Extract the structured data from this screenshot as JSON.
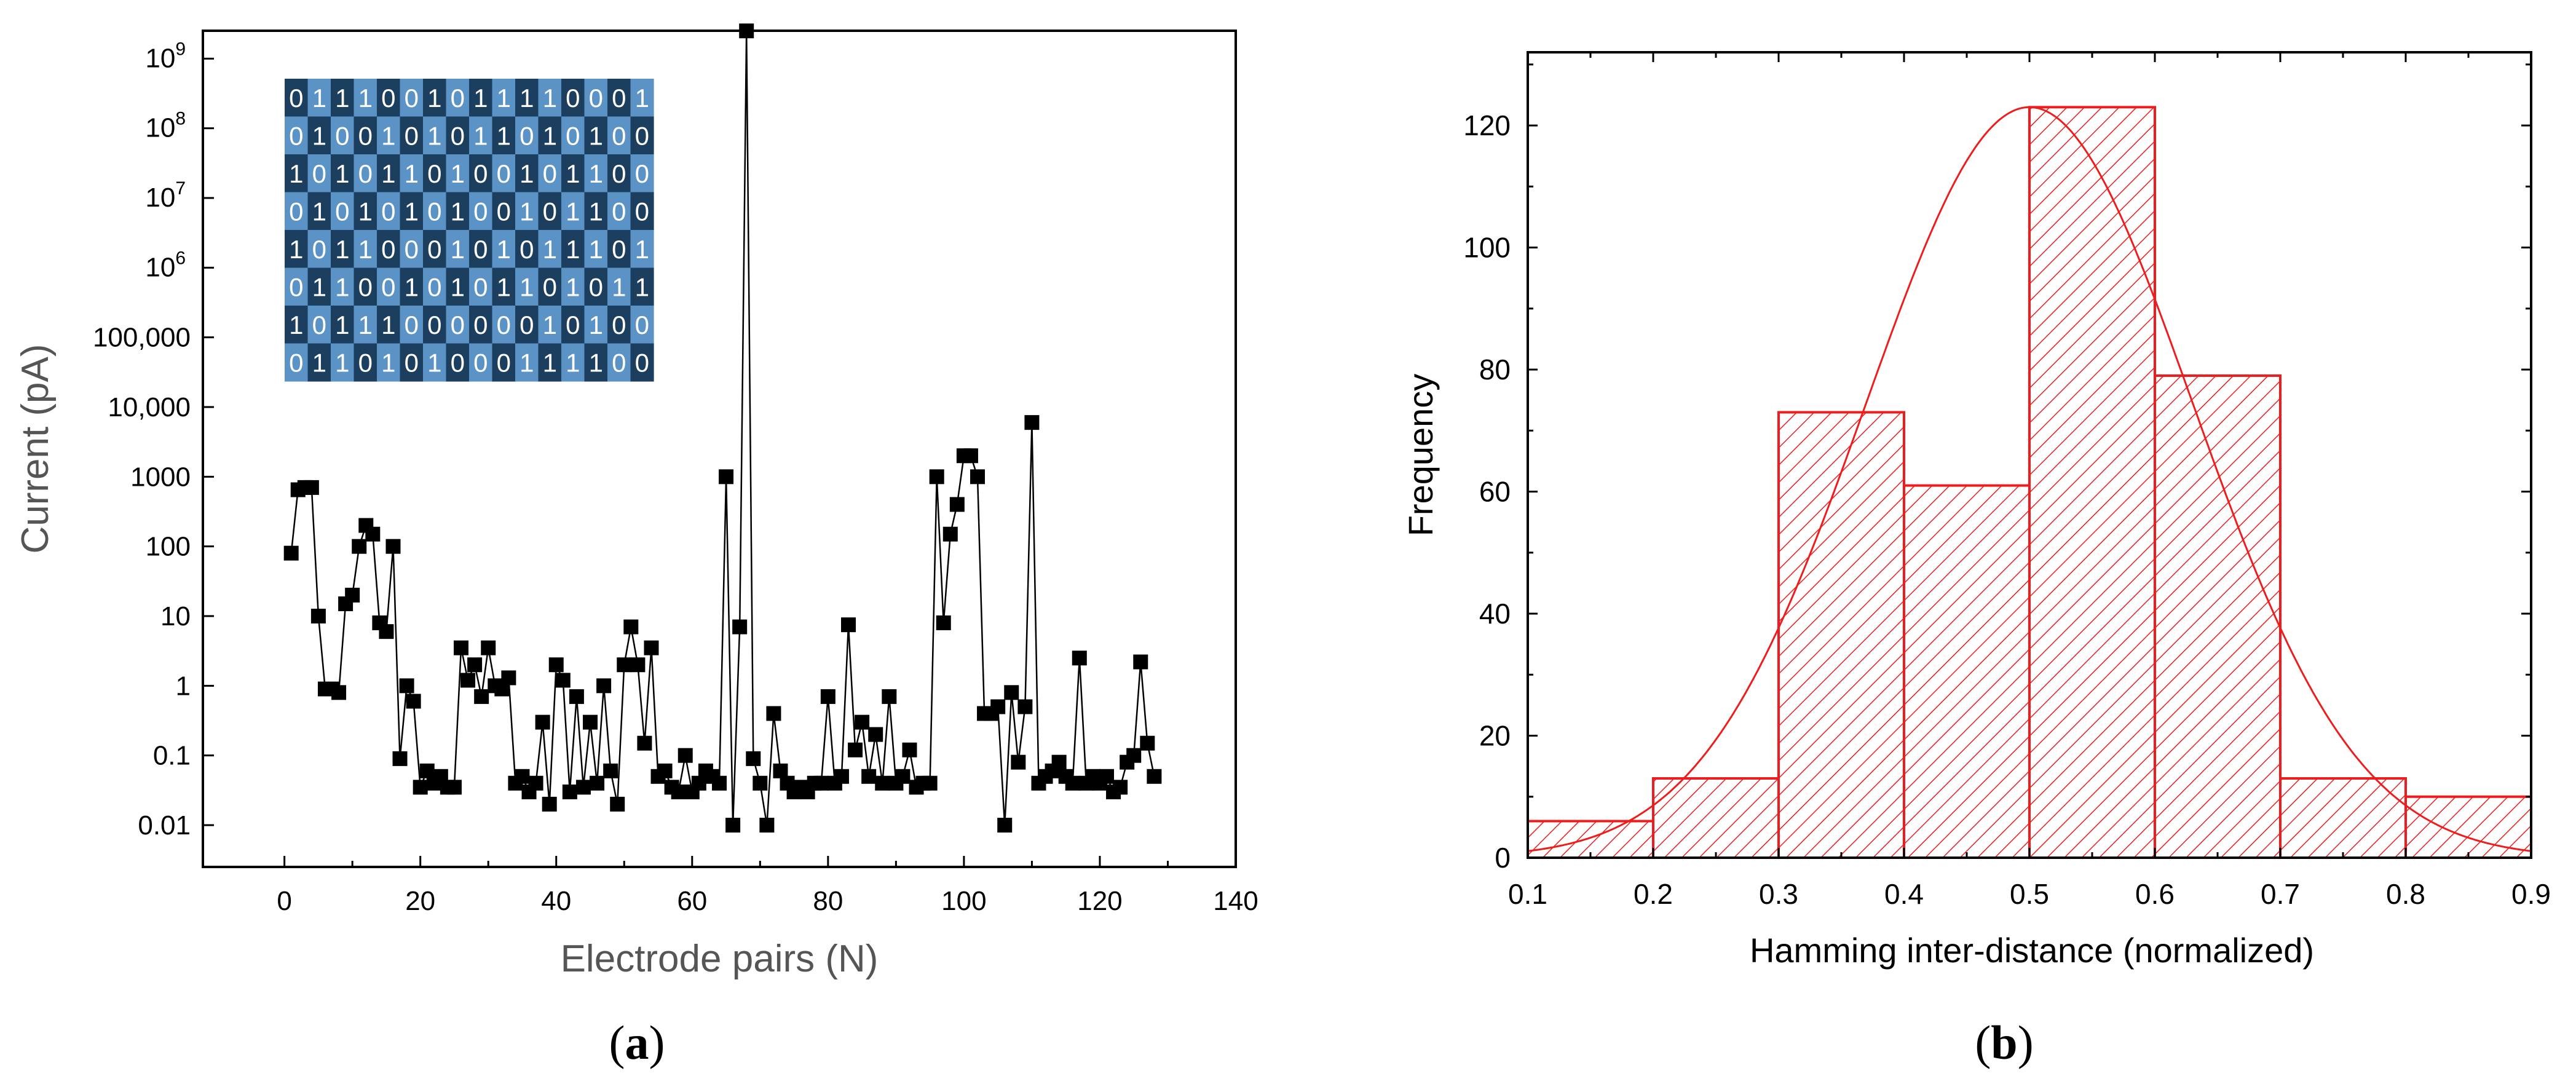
{
  "panel_a": {
    "caption_open": "(",
    "caption_letter": "a",
    "caption_close": ")"
  },
  "panel_b": {
    "caption_open": "(",
    "caption_letter": "b",
    "caption_close": ")"
  },
  "colors": {
    "series_a": "#000000",
    "bars_b": "#ee1c1c",
    "cell_dark": "#1d3f5f",
    "cell_light": "#5b93c7",
    "inset_text": "#ffffff"
  },
  "chart_data": [
    {
      "type": "scatter",
      "title": "",
      "xlabel": "Electrode pairs (N)",
      "ylabel": "Current (pA)",
      "xlim": [
        -12,
        140
      ],
      "ylim_log10": [
        -2.6,
        9.4
      ],
      "yscale": "log",
      "x_ticks": [
        0,
        20,
        40,
        60,
        80,
        100,
        120,
        140
      ],
      "x_tick_labels": [
        "0",
        "20",
        "40",
        "60",
        "80",
        "100",
        "120",
        "140"
      ],
      "y_tick_labels": [
        {
          "value": 0.01,
          "label": "0.01",
          "sup": ""
        },
        {
          "value": 0.1,
          "label": "0.1",
          "sup": ""
        },
        {
          "value": 1,
          "label": "1",
          "sup": ""
        },
        {
          "value": 10,
          "label": "10",
          "sup": ""
        },
        {
          "value": 100,
          "label": "100",
          "sup": ""
        },
        {
          "value": 1000,
          "label": "1000",
          "sup": ""
        },
        {
          "value": 10000,
          "label": "10,000",
          "sup": ""
        },
        {
          "value": 100000,
          "label": "100,000",
          "sup": ""
        },
        {
          "value": 1000000,
          "label": "10",
          "sup": "6"
        },
        {
          "value": 10000000,
          "label": "10",
          "sup": "7"
        },
        {
          "value": 100000000,
          "label": "10",
          "sup": "8"
        },
        {
          "value": 1000000000,
          "label": "10",
          "sup": "9"
        }
      ],
      "x": [
        1,
        2,
        3,
        4,
        5,
        6,
        7,
        8,
        9,
        10,
        11,
        12,
        13,
        14,
        15,
        16,
        17,
        18,
        19,
        20,
        21,
        22,
        23,
        24,
        25,
        26,
        27,
        28,
        29,
        30,
        31,
        32,
        33,
        34,
        35,
        36,
        37,
        38,
        39,
        40,
        41,
        42,
        43,
        44,
        45,
        46,
        47,
        48,
        49,
        50,
        51,
        52,
        53,
        54,
        55,
        56,
        57,
        58,
        59,
        60,
        61,
        62,
        63,
        64,
        65,
        66,
        67,
        68,
        69,
        70,
        71,
        72,
        73,
        74,
        75,
        76,
        77,
        78,
        79,
        80,
        81,
        82,
        83,
        84,
        85,
        86,
        87,
        88,
        89,
        90,
        91,
        92,
        93,
        94,
        95,
        96,
        97,
        98,
        99,
        100,
        101,
        102,
        103,
        104,
        105,
        106,
        107,
        108,
        109,
        110,
        111,
        112,
        113,
        114,
        115,
        116,
        117,
        118,
        119,
        120,
        121,
        122,
        123,
        124,
        125,
        126,
        127,
        128
      ],
      "y": [
        80,
        650,
        700,
        700,
        10,
        0.9,
        0.9,
        0.8,
        15,
        20,
        100,
        200,
        150,
        8,
        6,
        100,
        0.09,
        1.0,
        0.6,
        0.035,
        0.06,
        0.04,
        0.05,
        0.035,
        0.035,
        3.5,
        1.2,
        2.0,
        0.7,
        3.5,
        1.0,
        0.9,
        1.3,
        0.04,
        0.05,
        0.03,
        0.04,
        0.3,
        0.02,
        2.0,
        1.2,
        0.03,
        0.7,
        0.035,
        0.3,
        0.04,
        1.0,
        0.06,
        0.02,
        2.0,
        7.0,
        2.0,
        0.15,
        3.5,
        0.05,
        0.06,
        0.035,
        0.03,
        0.1,
        0.03,
        0.04,
        0.06,
        0.05,
        0.04,
        1000,
        0.01,
        7.0,
        2500000000,
        0.09,
        0.04,
        0.01,
        0.4,
        0.06,
        0.04,
        0.03,
        0.035,
        0.03,
        0.04,
        0.04,
        0.7,
        0.04,
        0.05,
        7.5,
        0.12,
        0.3,
        0.05,
        0.2,
        0.04,
        0.7,
        0.04,
        0.05,
        0.12,
        0.035,
        0.04,
        0.04,
        1000,
        8,
        150,
        400,
        2000,
        2000,
        1000,
        0.4,
        0.4,
        0.5,
        0.01,
        0.8,
        0.08,
        0.5,
        6000,
        0.04,
        0.05,
        0.06,
        0.08,
        0.05,
        0.04,
        2.5,
        0.04,
        0.05,
        0.04,
        0.05,
        0.03,
        0.035,
        0.08,
        0.1,
        2.2,
        0.15,
        0.05
      ],
      "inset": {
        "type": "table",
        "rows": [
          "0111001011110001",
          "0100101011010100",
          "1010110100101100",
          "0101010100101100",
          "1011000101011101",
          "0110010101101011",
          "1011100000010100",
          "0110101000111100"
        ]
      }
    },
    {
      "type": "bar",
      "title": "",
      "xlabel": "Hamming inter-distance (normalized)",
      "ylabel": "Frequency",
      "xlim": [
        0.1,
        0.9
      ],
      "ylim": [
        0,
        132
      ],
      "x_ticks": [
        0.1,
        0.2,
        0.3,
        0.4,
        0.5,
        0.6,
        0.7,
        0.8,
        0.9
      ],
      "x_tick_labels": [
        "0.1",
        "0.2",
        "0.3",
        "0.4",
        "0.5",
        "0.6",
        "0.7",
        "0.8",
        "0.9"
      ],
      "y_ticks": [
        0,
        20,
        40,
        60,
        80,
        100,
        120
      ],
      "y_tick_labels": [
        "0",
        "20",
        "40",
        "60",
        "80",
        "100",
        "120"
      ],
      "bins": [
        {
          "x0": 0.1,
          "x1": 0.2,
          "value": 6
        },
        {
          "x0": 0.2,
          "x1": 0.3,
          "value": 13
        },
        {
          "x0": 0.3,
          "x1": 0.4,
          "value": 73
        },
        {
          "x0": 0.4,
          "x1": 0.5,
          "value": 61
        },
        {
          "x0": 0.5,
          "x1": 0.6,
          "value": 123
        },
        {
          "x0": 0.6,
          "x1": 0.7,
          "value": 79
        },
        {
          "x0": 0.7,
          "x1": 0.8,
          "value": 13
        },
        {
          "x0": 0.8,
          "x1": 0.9,
          "value": 10
        }
      ],
      "fit": {
        "type": "gaussian",
        "center": 0.5,
        "sigma": 0.13,
        "peak": 123
      }
    }
  ]
}
